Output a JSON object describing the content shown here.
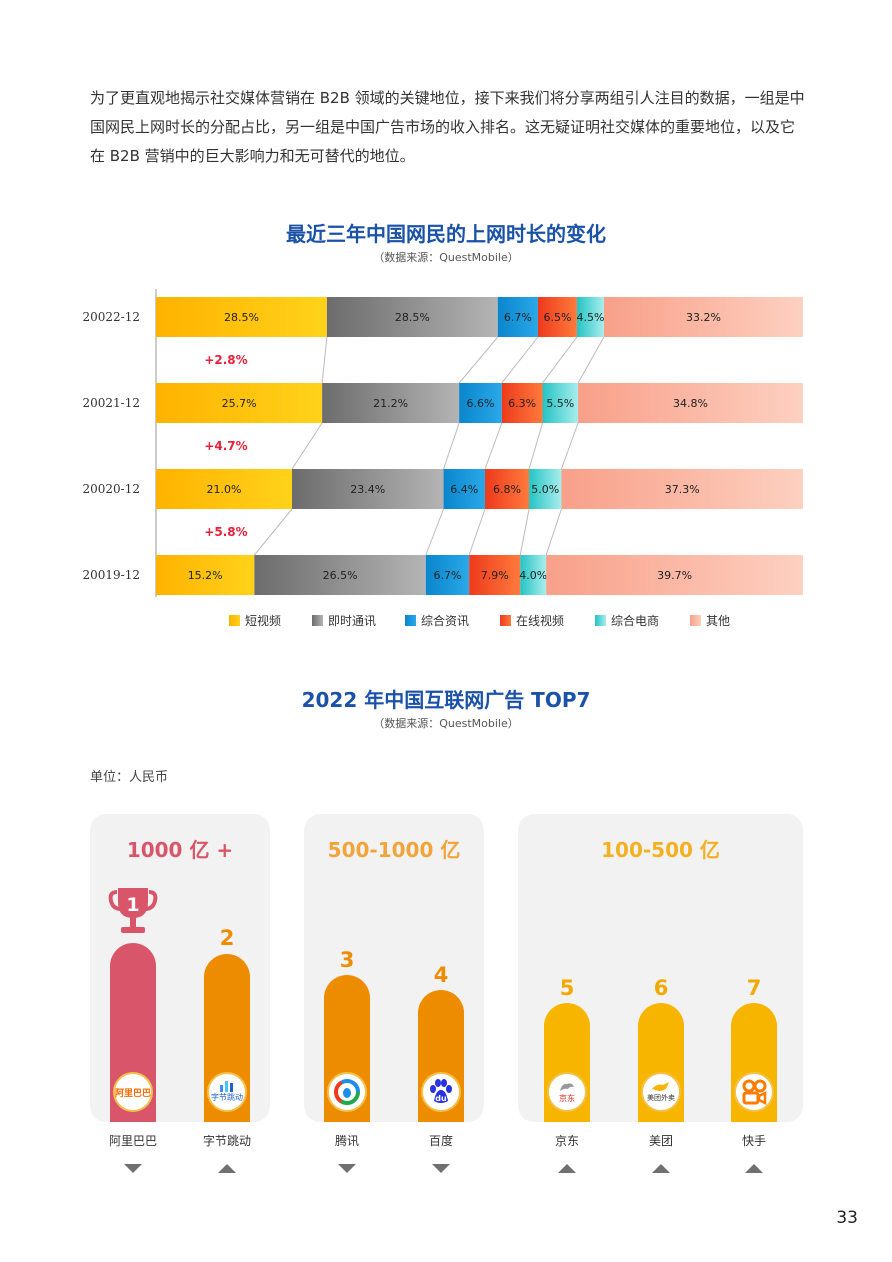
{
  "intro_text": "为了更直观地揭示社交媒体营销在 B2B 领域的关键地位，接下来我们将分享两组引人注目的数据，一组是中国网民上网时长的分配占比，另一组是中国广告市场的收入排名。这无疑证明社交媒体的重要地位，以及它在 B2B 营销中的巨大影响力和无可替代的地位。",
  "chart_data": [
    {
      "type": "bar",
      "stacked": true,
      "orientation": "horizontal",
      "title": "最近三年中国网民的上网时长的变化",
      "subtitle": "（数据来源：QuestMobile）",
      "categories": [
        "20022-12",
        "20021-12",
        "20020-12",
        "20019-12"
      ],
      "series": [
        {
          "name": "短视频",
          "values": [
            28.5,
            25.7,
            21.0,
            15.2
          ],
          "labels": [
            "28.5%",
            "25.7%",
            "21.0%",
            "15.2%"
          ]
        },
        {
          "name": "即时通讯",
          "values": [
            28.5,
            21.2,
            23.4,
            26.5
          ],
          "labels": [
            "28.5%",
            "21.2%",
            "23.4%",
            "26.5%"
          ]
        },
        {
          "name": "综合资讯",
          "values": [
            6.7,
            6.6,
            6.4,
            6.7
          ],
          "labels": [
            "6.7%",
            "6.6%",
            "6.4%",
            "6.7%"
          ]
        },
        {
          "name": "在线视频",
          "values": [
            6.5,
            6.3,
            6.8,
            7.9
          ],
          "labels": [
            "6.5%",
            "6.3%",
            "6.8%",
            "7.9%"
          ]
        },
        {
          "name": "综合电商",
          "values": [
            4.5,
            5.5,
            5.0,
            4.0
          ],
          "labels": [
            "4.5%",
            "5.5%",
            "5.0%",
            "4.0%"
          ]
        },
        {
          "name": "其他",
          "values": [
            33.2,
            34.8,
            37.3,
            39.7
          ],
          "labels": [
            "33.2%",
            "34.8%",
            "37.3%",
            "39.7%"
          ]
        }
      ],
      "changes": [
        "+2.8%",
        "+4.7%",
        "+5.8%"
      ],
      "colors": {
        "短视频": [
          "#ffb300",
          "#ffd21a"
        ],
        "即时通讯": [
          "#6c6c6c",
          "#b4b4b4"
        ],
        "综合资讯": [
          "#0a86cc",
          "#2aa8e8"
        ],
        "在线视频": [
          "#ee3a1c",
          "#ff7a3c"
        ],
        "综合电商": [
          "#25c4c4",
          "#a9eded"
        ],
        "其他": [
          "#f8a089",
          "#fdd0c0"
        ]
      },
      "change_color": "#e8203a"
    },
    {
      "type": "bar",
      "title": "2022 年中国互联网广告 TOP7",
      "subtitle": "（数据来源：QuestMobile）",
      "unit": "单位：人民币",
      "groups": [
        {
          "label": "1000 亿 +",
          "color": "#d9566a",
          "companies": [
            {
              "rank": "1",
              "name": "阿里巴巴",
              "trend": "down",
              "color": "#d9566a",
              "logo": "alibaba-icon"
            },
            {
              "rank": "2",
              "name": "字节跳动",
              "trend": "up",
              "color": "#ee8c00",
              "logo": "bytedance-icon"
            }
          ]
        },
        {
          "label": "500-1000 亿",
          "color": "#f0a43a",
          "companies": [
            {
              "rank": "3",
              "name": "腾讯",
              "trend": "down",
              "color": "#ee8c00",
              "logo": "tencent-icon"
            },
            {
              "rank": "4",
              "name": "百度",
              "trend": "down",
              "color": "#ee8c00",
              "logo": "baidu-icon"
            }
          ]
        },
        {
          "label": "100-500 亿",
          "color": "#f4b021",
          "companies": [
            {
              "rank": "5",
              "name": "京东",
              "trend": "up",
              "color": "#f8b500",
              "logo": "jd-icon"
            },
            {
              "rank": "6",
              "name": "美团",
              "trend": "up",
              "color": "#f8b500",
              "logo": "meituan-icon"
            },
            {
              "rank": "7",
              "name": "快手",
              "trend": "up",
              "color": "#f8b500",
              "logo": "kuaishou-icon"
            }
          ]
        }
      ],
      "rank_color_top": "#d9566a",
      "rank_color": "#ee8c00"
    }
  ],
  "logo_text": {
    "alibaba": "阿里巴巴",
    "bytedance": "字节跳动",
    "baidu": "du",
    "jd": "京东",
    "meituan": "美团外卖",
    "kuaishou": "快手"
  },
  "page_number": "33"
}
